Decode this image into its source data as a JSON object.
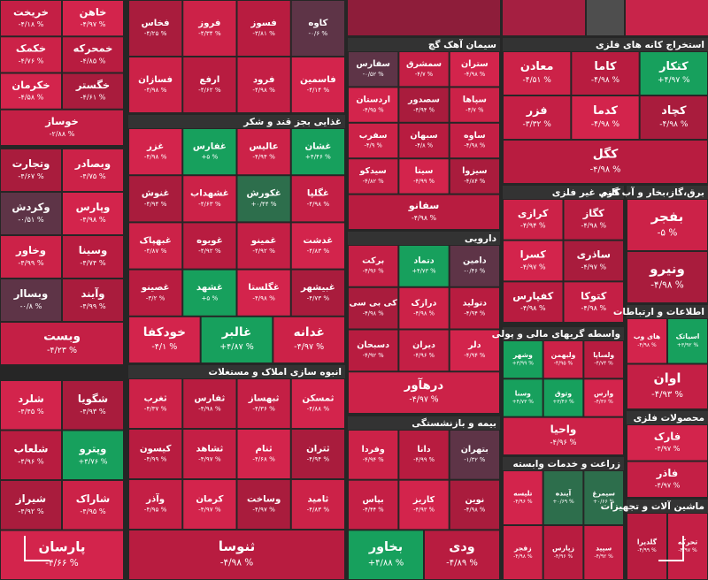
{
  "sectors": [
    {
      "tiles": [
        {
          "name": "خاهن",
          "change": "-۴/۹۷ %"
        },
        {
          "name": "خریخت",
          "change": "-۴/۱۸ %"
        },
        {
          "name": "خمحرکه",
          "change": "-۴/۸۵ %"
        },
        {
          "name": "خکمک",
          "change": "-۴/۷۶ %"
        },
        {
          "name": "خگستر",
          "change": "-۴/۶۱ %"
        },
        {
          "name": "خکرمان",
          "change": "-۴/۵۸ %"
        },
        {
          "name": "خوساز",
          "change": "-۲/۸۸ %"
        }
      ]
    },
    {
      "tiles": [
        {
          "name": "کاوه",
          "change": "-۰/۶ %"
        },
        {
          "name": "فسوز",
          "change": "-۳/۸۱ %"
        },
        {
          "name": "فروز",
          "change": "-۴/۳۴ %"
        },
        {
          "name": "فخاس",
          "change": "-۴/۲۵ %"
        },
        {
          "name": "فاسمین",
          "change": "-۴/۱۴ %"
        },
        {
          "name": "فرود",
          "change": "-۴/۹۸ %"
        },
        {
          "name": "ارفع",
          "change": "-۴/۶۲ %"
        },
        {
          "name": "فسازان",
          "change": "-۴/۹۸ %"
        }
      ]
    },
    {
      "title": "غذایی بجز قند و شکر",
      "tiles": [
        {
          "name": "غشان",
          "change": "+۴/۴۶ %"
        },
        {
          "name": "عالیس",
          "change": "-۴/۹۴ %"
        },
        {
          "name": "غفارس",
          "change": "+۵ %"
        },
        {
          "name": "غزر",
          "change": "-۴/۹۸ %"
        },
        {
          "name": "غگلپا",
          "change": "-۴/۹۸ %"
        },
        {
          "name": "غکورش",
          "change": "+۰/۴۴ %"
        },
        {
          "name": "غشهداب",
          "change": "-۴/۶۳ %"
        },
        {
          "name": "غنوش",
          "change": "-۴/۹۴ %"
        },
        {
          "name": "غدشت",
          "change": "-۴/۸۳ %"
        },
        {
          "name": "غمینو",
          "change": "-۴/۹۲ %"
        },
        {
          "name": "غویوه",
          "change": "-۴/۹۲ %"
        },
        {
          "name": "غبهپاک",
          "change": "-۴/۸۷ %"
        },
        {
          "name": "غبیشهر",
          "change": "-۴/۷۳ %"
        },
        {
          "name": "غگلستا",
          "change": "-۴/۹۸ %"
        },
        {
          "name": "غشهد",
          "change": "+۵ %"
        },
        {
          "name": "غصینو",
          "change": "-۳/۲ %"
        },
        {
          "name": "غدانه",
          "change": "-۴/۹۷ %"
        },
        {
          "name": "غالبر",
          "change": "+۴/۸۷ %"
        },
        {
          "name": "خودکفا",
          "change": "-۴/۱ %"
        }
      ]
    },
    {
      "tiles": [
        {
          "name": "وبصادر",
          "change": "-۴/۷۵ %"
        },
        {
          "name": "وتجارت",
          "change": "-۴/۶۷ %"
        },
        {
          "name": "وپارس",
          "change": "-۴/۹۸ %"
        },
        {
          "name": "وکردش",
          "change": "-۰/۵۱ %"
        },
        {
          "name": "وسینا",
          "change": "-۴/۷۴ %"
        },
        {
          "name": "وخاور",
          "change": "-۴/۹۹ %"
        },
        {
          "name": "وآیند",
          "change": "-۴/۹۹ %"
        },
        {
          "name": "وبساار",
          "change": "-۰/۸ %"
        },
        {
          "name": "وبست",
          "change": "-۴/۲۳ %"
        }
      ]
    },
    {
      "tiles": [
        {
          "name": "شگویا",
          "change": "-۴/۹۳ %"
        },
        {
          "name": "شلرد",
          "change": "-۴/۴۵ %"
        },
        {
          "name": "وپترو",
          "change": "+۴/۷۶ %"
        },
        {
          "name": "شلعاب",
          "change": "-۴/۹۶ %"
        },
        {
          "name": "شاراک",
          "change": "-۴/۹۵ %"
        },
        {
          "name": "شیراز",
          "change": "-۴/۹۲ %"
        },
        {
          "name": "پارسان",
          "change": "-۴/۶۶ %"
        }
      ]
    },
    {
      "title": "سیمان آهک گچ",
      "tiles": [
        {
          "name": "ستران",
          "change": "-۴/۹۸ %"
        },
        {
          "name": "سمشرق",
          "change": "-۴/۷ %"
        },
        {
          "name": "سفارس",
          "change": "-۰/۵۲ %"
        },
        {
          "name": "سپاها",
          "change": "-۴/۷ %"
        },
        {
          "name": "سصدور",
          "change": "-۴/۹۴ %"
        },
        {
          "name": "اردستان",
          "change": "-۴/۹۵ %"
        },
        {
          "name": "ساوه",
          "change": "-۴/۹۸ %"
        },
        {
          "name": "سبهان",
          "change": "-۴/۸ %"
        },
        {
          "name": "سفرب",
          "change": "-۴/۹ %"
        },
        {
          "name": "سیزوا",
          "change": "-۴/۸۴ %"
        },
        {
          "name": "سیتا",
          "change": "-۴/۹۹ %"
        },
        {
          "name": "سیدکو",
          "change": "-۴/۸۲ %"
        },
        {
          "name": "سفانو",
          "change": "-۴/۹۸ %"
        }
      ]
    },
    {
      "title": "استخراج کانه های فلزی",
      "tiles": [
        {
          "name": "کتکار",
          "change": "+۴/۹۷ %"
        },
        {
          "name": "کاما",
          "change": "-۴/۹۸ %"
        },
        {
          "name": "معادن",
          "change": "-۴/۵۱ %"
        },
        {
          "name": "کچاد",
          "change": "-۴/۹۸ %"
        },
        {
          "name": "کدما",
          "change": "-۴/۹۸ %"
        },
        {
          "name": "فزر",
          "change": "-۳/۳۲ %"
        },
        {
          "name": "کگل",
          "change": "-۴/۹۸ %"
        }
      ]
    },
    {
      "title": "کانی غیر فلزی",
      "tiles": [
        {
          "name": "کگاز",
          "change": "-۴/۹۸ %"
        },
        {
          "name": "کرازی",
          "change": "-۴/۹۴ %"
        },
        {
          "name": "ساذری",
          "change": "-۴/۹۷ %"
        },
        {
          "name": "کسرا",
          "change": "-۴/۹۷ %"
        },
        {
          "name": "کتوکا",
          "change": "-۴/۹۸ %"
        },
        {
          "name": "کفپارس",
          "change": "-۴/۹۸ %"
        }
      ]
    },
    {
      "title": "برق،گاز،بخار و آب گرم",
      "tiles": [
        {
          "name": "بفجر",
          "change": "-۵ %"
        },
        {
          "name": "ونیرو",
          "change": "-۴/۹۸ %"
        }
      ]
    },
    {
      "title": "دارویی",
      "tiles": [
        {
          "name": "دامین",
          "change": "-۰/۴۶ %"
        },
        {
          "name": "دتماد",
          "change": "+۴/۷۳ %"
        },
        {
          "name": "برکت",
          "change": "-۴/۹۶ %"
        },
        {
          "name": "دتولید",
          "change": "-۴/۹۴ %"
        },
        {
          "name": "درازک",
          "change": "-۴/۹۸ %"
        },
        {
          "name": "کی بی سی",
          "change": "-۴/۹۸ %"
        },
        {
          "name": "دلر",
          "change": "-۴/۹۴ %"
        },
        {
          "name": "دیران",
          "change": "-۴/۹۶ %"
        },
        {
          "name": "دسبحان",
          "change": "-۴/۹۲ %"
        },
        {
          "name": "درهآور",
          "change": "-۴/۹۷ %"
        }
      ]
    },
    {
      "title": "انبوه سازی املاک و مستغلات",
      "tiles": [
        {
          "name": "ثمسکن",
          "change": "-۴/۸۸ %"
        },
        {
          "name": "ثبهساز",
          "change": "-۴/۳۶ %"
        },
        {
          "name": "ثفارس",
          "change": "-۴/۹۸ %"
        },
        {
          "name": "ثغرب",
          "change": "-۴/۳۷ %"
        },
        {
          "name": "ثتران",
          "change": "-۴/۹۴ %"
        },
        {
          "name": "ثنام",
          "change": "-۴/۶۸ %"
        },
        {
          "name": "ثشاهد",
          "change": "-۴/۹۷ %"
        },
        {
          "name": "کیسون",
          "change": "-۴/۹۹ %"
        },
        {
          "name": "ثامید",
          "change": "-۴/۸۳ %"
        },
        {
          "name": "وساخت",
          "change": "-۴/۹۷ %"
        },
        {
          "name": "کرمان",
          "change": "-۴/۹۷ %"
        },
        {
          "name": "وآذر",
          "change": "-۴/۹۵ %"
        },
        {
          "name": "ثنوسا",
          "change": "-۴/۹۸ %"
        }
      ]
    },
    {
      "title": "بیمه و بازنشستگی",
      "tiles": [
        {
          "name": "بتهران",
          "change": "-۱/۳۲ %"
        },
        {
          "name": "دانا",
          "change": "-۴/۹۹ %"
        },
        {
          "name": "وفردا",
          "change": "-۴/۹۴ %"
        },
        {
          "name": "نوین",
          "change": "-۴/۹۸ %"
        },
        {
          "name": "کاریز",
          "change": "-۴/۹۳ %"
        },
        {
          "name": "بپاس",
          "change": "-۴/۴۴ %"
        },
        {
          "name": "ودی",
          "change": "-۴/۸۹ %"
        },
        {
          "name": "بخاور",
          "change": "+۴/۸۸ %"
        }
      ]
    },
    {
      "title": "واسطه گریهای مالی و پولی",
      "tiles": [
        {
          "name": "ولساپا",
          "change": "-۴/۷۴ %"
        },
        {
          "name": "ولبهمن",
          "change": "-۴/۹۵ %"
        },
        {
          "name": "وشهر",
          "change": "+۳/۹۹ %"
        },
        {
          "name": "وارس",
          "change": "-۴/۳۶ %"
        },
        {
          "name": "وثوق",
          "change": "+۳/۴۶ %"
        },
        {
          "name": "وسنا",
          "change": "+۴/۷۳ %"
        },
        {
          "name": "واحیا",
          "change": "-۴/۹۶ %"
        }
      ]
    },
    {
      "title": "زراعت و خدمات وابسته",
      "tiles": [
        {
          "name": "سیمرغ",
          "change": "+۰/۶۶ %"
        },
        {
          "name": "آینده",
          "change": "+۰/۶۹ %"
        },
        {
          "name": "تلیسه",
          "change": "-۴/۹۶ %"
        },
        {
          "name": "سپید",
          "change": "-۴/۹۲ %"
        },
        {
          "name": "زپارس",
          "change": "-۴/۹۶ %"
        },
        {
          "name": "زفجر",
          "change": "-۴/۹۸ %"
        }
      ]
    },
    {
      "title": "اطلاعات و ارتباطات",
      "tiles": [
        {
          "name": "اسیاتک",
          "change": "+۳/۹۲ %"
        },
        {
          "name": "های وب",
          "change": "-۴/۹۸ %"
        },
        {
          "name": "اوان",
          "change": "-۴/۹۳ %"
        }
      ]
    },
    {
      "title": "محصولات فلزی",
      "tiles": [
        {
          "name": "فارک",
          "change": "-۴/۹۷ %"
        },
        {
          "name": "فاذر",
          "change": "-۴/۹۷ %"
        }
      ]
    },
    {
      "title": "ماشین آلات و تجهیزات",
      "tiles": [
        {
          "name": "تحرکه",
          "change": "-۴/۹۷ %"
        },
        {
          "name": "گلدیرا",
          "change": "-۴/۹۹ %"
        }
      ]
    }
  ]
}
